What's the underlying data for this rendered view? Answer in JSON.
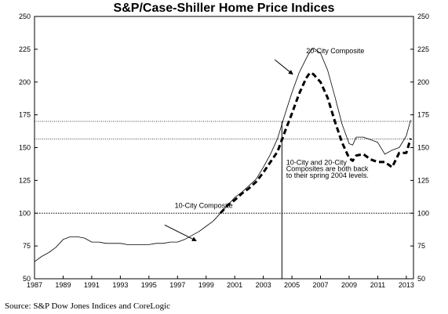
{
  "chart_data": {
    "type": "line",
    "title": "S&P/Case-Shiller Home Price Indices",
    "xlabel": "",
    "ylabel": "",
    "xlim": [
      1987,
      2013.5
    ],
    "ylim": [
      50,
      250
    ],
    "x_ticks": [
      "1987",
      "1989",
      "1991",
      "1993",
      "1995",
      "1997",
      "1999",
      "2001",
      "2003",
      "2005",
      "2007",
      "2009",
      "2011",
      "2013"
    ],
    "y_ticks": [
      "50",
      "75",
      "100",
      "125",
      "150",
      "175",
      "200",
      "225",
      "250"
    ],
    "grid": false,
    "reference_lines": [
      {
        "y": 100,
        "style": "dotted"
      },
      {
        "y": 170,
        "style": "dotted"
      },
      {
        "y": 156.5,
        "style": "dotted"
      }
    ],
    "vertical_marker_x": 2004.3,
    "series": [
      {
        "name": "10-City Composite",
        "style": "thin-solid",
        "x": [
          1987,
          1987.5,
          1988,
          1988.5,
          1989,
          1989.5,
          1990,
          1990.5,
          1991,
          1991.5,
          1992,
          1992.5,
          1993,
          1993.5,
          1994,
          1994.5,
          1995,
          1995.5,
          1996,
          1996.5,
          1997,
          1997.5,
          1998,
          1998.5,
          1999,
          1999.5,
          2000,
          2000.5,
          2001,
          2001.5,
          2002,
          2002.5,
          2003,
          2003.5,
          2004,
          2004.5,
          2005,
          2005.5,
          2006,
          2006.25,
          2006.5,
          2007,
          2007.5,
          2008,
          2008.5,
          2009,
          2009.25,
          2009.5,
          2010,
          2010.5,
          2011,
          2011.5,
          2012,
          2012.5,
          2013,
          2013.3
        ],
        "values": [
          63,
          67,
          70,
          74,
          80,
          82,
          82,
          81,
          78,
          78,
          77,
          77,
          77,
          76,
          76,
          76,
          76,
          77,
          77,
          78,
          78,
          80,
          83,
          86,
          90,
          94,
          100,
          106,
          112,
          116,
          121,
          126,
          135,
          145,
          157,
          175,
          192,
          207,
          218,
          223,
          226,
          222,
          209,
          189,
          168,
          153,
          152,
          158,
          158,
          156,
          154,
          145,
          148,
          150,
          159,
          171
        ]
      },
      {
        "name": "20-City Composite",
        "style": "thick-dashed",
        "x": [
          2000,
          2000.5,
          2001,
          2001.5,
          2002,
          2002.5,
          2003,
          2003.5,
          2004,
          2004.5,
          2005,
          2005.5,
          2006,
          2006.25,
          2006.5,
          2007,
          2007.5,
          2008,
          2008.5,
          2009,
          2009.25,
          2009.5,
          2010,
          2010.5,
          2011,
          2011.5,
          2012,
          2012.5,
          2013,
          2013.3
        ],
        "values": [
          100,
          106,
          110,
          115,
          119,
          124,
          131,
          139,
          147,
          162,
          176,
          191,
          203,
          207,
          206,
          200,
          188,
          170,
          154,
          142,
          140,
          144,
          145,
          141,
          139,
          139,
          135,
          146,
          146,
          157
        ]
      }
    ],
    "annotations": [
      {
        "text": "20-City Composite",
        "x": 2006,
        "y": 222
      },
      {
        "text": "10-City Composite",
        "x": 1996.8,
        "y": 104
      },
      {
        "text": "10-City and 20-City",
        "x": 2004.6,
        "y": 137
      },
      {
        "text": "Composites are both back",
        "x": 2004.6,
        "y": 132
      },
      {
        "text": "to their spring 2004 levels.",
        "x": 2004.6,
        "y": 127
      }
    ],
    "source": "Source: S&P Dow Jones Indices and CoreLogic"
  }
}
